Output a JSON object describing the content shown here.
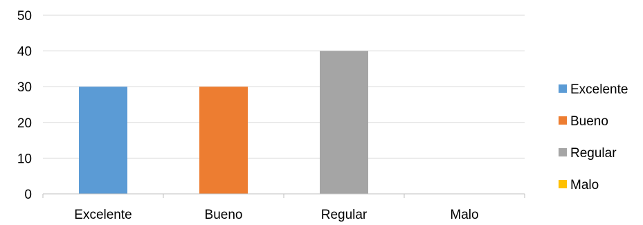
{
  "chart_data": {
    "type": "bar",
    "categories": [
      "Excelente",
      "Bueno",
      "Regular",
      "Malo"
    ],
    "values": [
      30,
      30,
      40,
      0
    ],
    "colors": [
      "#5B9BD5",
      "#ED7D31",
      "#A5A5A5",
      "#FFC000"
    ],
    "title": "",
    "xlabel": "",
    "ylabel": "",
    "ylim": [
      0,
      50
    ],
    "yticks": [
      "0",
      "10",
      "20",
      "30",
      "40",
      "50"
    ],
    "grid": true,
    "legend": {
      "placement": "right",
      "entries": [
        "Excelente",
        "Bueno",
        "Regular",
        "Malo"
      ]
    }
  }
}
